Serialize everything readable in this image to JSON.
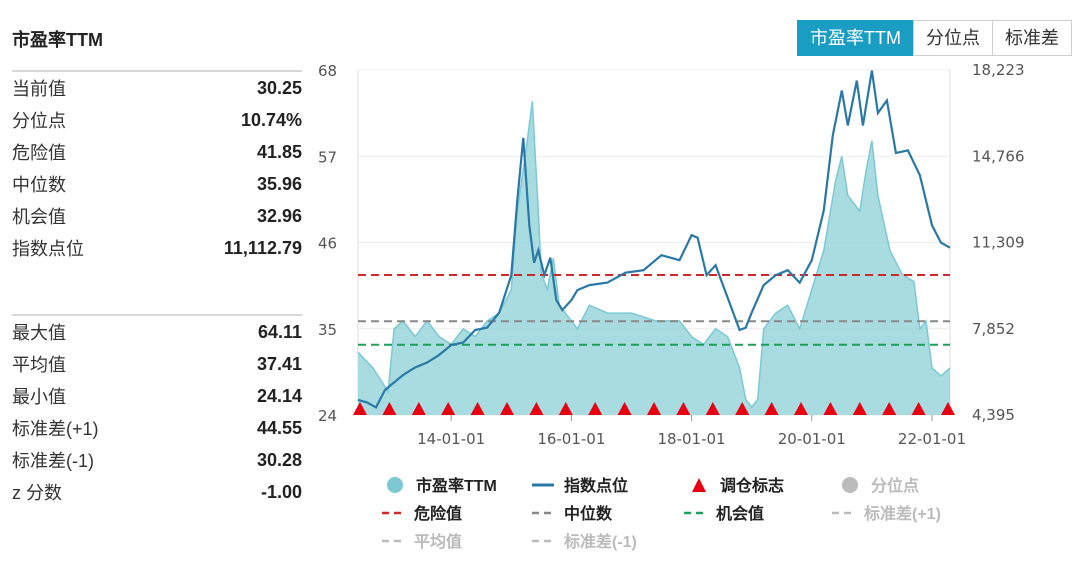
{
  "title": "市盈率TTM",
  "tabs": [
    {
      "label": "市盈率TTM",
      "active": true
    },
    {
      "label": "分位点",
      "active": false
    },
    {
      "label": "标准差",
      "active": false
    }
  ],
  "stats_group1": [
    {
      "label": "当前值",
      "value": "30.25"
    },
    {
      "label": "分位点",
      "value": "10.74%"
    },
    {
      "label": "危险值",
      "value": "41.85"
    },
    {
      "label": "中位数",
      "value": "35.96"
    },
    {
      "label": "机会值",
      "value": "32.96"
    },
    {
      "label": "指数点位",
      "value": "11,112.79"
    }
  ],
  "stats_group2": [
    {
      "label": "最大值",
      "value": "64.11"
    },
    {
      "label": "平均值",
      "value": "37.41"
    },
    {
      "label": "最小值",
      "value": "24.14"
    },
    {
      "label": "标准差(+1)",
      "value": "44.55"
    },
    {
      "label": "标准差(-1)",
      "value": "30.28"
    },
    {
      "label": "z 分数",
      "value": "-1.00"
    }
  ],
  "colors": {
    "pe_fill": "#9fd8de",
    "pe_line": "#7cc9d3",
    "index_line": "#2a78a6",
    "marker": "#e60012",
    "danger": "#cc2a2a",
    "median": "#888888",
    "opportunity": "#1e9e5a",
    "disabled": "#bbbbbb",
    "accent": "#1a9dc3"
  },
  "chart_data": {
    "type": "area",
    "y_left_ticks": [
      "68",
      "57",
      "46",
      "35",
      "24"
    ],
    "y_right_ticks": [
      "18,223",
      "14,766",
      "11,309",
      "7,852",
      "4,395"
    ],
    "x_ticks": [
      "14-01-01",
      "16-01-01",
      "18-01-01",
      "20-01-01",
      "22-01-01"
    ],
    "ylim_left": [
      24,
      68
    ],
    "ylim_right": [
      4395,
      18223
    ],
    "xlim": [
      2012.45,
      2022.3
    ],
    "ref_lines": {
      "danger": 41.85,
      "median": 35.96,
      "opportunity": 32.96
    },
    "series": [
      {
        "name": "市盈率TTM",
        "axis": "left",
        "x": [
          2012.45,
          2012.7,
          2012.95,
          2013.05,
          2013.2,
          2013.4,
          2013.6,
          2013.8,
          2014.0,
          2014.2,
          2014.4,
          2014.6,
          2014.8,
          2015.0,
          2015.1,
          2015.25,
          2015.35,
          2015.45,
          2015.5,
          2015.6,
          2015.7,
          2015.8,
          2015.9,
          2016.0,
          2016.1,
          2016.3,
          2016.6,
          2017.0,
          2017.4,
          2017.8,
          2018.0,
          2018.2,
          2018.4,
          2018.6,
          2018.8,
          2018.9,
          2019.0,
          2019.1,
          2019.2,
          2019.4,
          2019.6,
          2019.8,
          2020.0,
          2020.2,
          2020.4,
          2020.5,
          2020.6,
          2020.8,
          2020.9,
          2021.0,
          2021.1,
          2021.3,
          2021.5,
          2021.7,
          2021.8,
          2021.9,
          2022.0,
          2022.15,
          2022.3
        ],
        "values": [
          32,
          30,
          27,
          35,
          36,
          34,
          36,
          34,
          33,
          35,
          34,
          36,
          37,
          40,
          50,
          58,
          64,
          50,
          42,
          40,
          44,
          38,
          37,
          36,
          35,
          38,
          37,
          37,
          36,
          36,
          34,
          33,
          35,
          34,
          30,
          26,
          25,
          26,
          35,
          37,
          38,
          35,
          40,
          45,
          54,
          57,
          52,
          50,
          55,
          59,
          52,
          45,
          42,
          41,
          35,
          36,
          30,
          29,
          30
        ]
      },
      {
        "name": "指数点位",
        "axis": "right",
        "x": [
          2012.45,
          2012.6,
          2012.75,
          2012.9,
          2013.0,
          2013.2,
          2013.4,
          2013.6,
          2013.8,
          2014.0,
          2014.2,
          2014.4,
          2014.6,
          2014.8,
          2015.0,
          2015.1,
          2015.2,
          2015.3,
          2015.38,
          2015.45,
          2015.55,
          2015.65,
          2015.75,
          2015.85,
          2016.0,
          2016.1,
          2016.3,
          2016.6,
          2016.9,
          2017.2,
          2017.5,
          2017.8,
          2018.0,
          2018.1,
          2018.25,
          2018.4,
          2018.6,
          2018.8,
          2018.9,
          2019.0,
          2019.2,
          2019.4,
          2019.6,
          2019.8,
          2020.0,
          2020.2,
          2020.35,
          2020.5,
          2020.6,
          2020.75,
          2020.85,
          2021.0,
          2021.1,
          2021.25,
          2021.4,
          2021.6,
          2021.8,
          2022.0,
          2022.15,
          2022.3
        ],
        "values": [
          5000,
          4900,
          4700,
          5400,
          5600,
          6000,
          6300,
          6500,
          6800,
          7200,
          7300,
          7800,
          7900,
          8500,
          10000,
          13000,
          15500,
          12000,
          10500,
          11000,
          10000,
          10700,
          9000,
          8600,
          9000,
          9400,
          9600,
          9700,
          10100,
          10200,
          10800,
          10600,
          11600,
          11500,
          10000,
          10400,
          9100,
          7800,
          7900,
          8500,
          9600,
          10000,
          10200,
          9700,
          10600,
          12600,
          15600,
          17400,
          16000,
          17800,
          16000,
          18200,
          16500,
          17000,
          14900,
          15000,
          14000,
          12000,
          11300,
          11100
        ]
      }
    ],
    "rebalance_markers_count": 21,
    "legend": [
      {
        "label": "市盈率TTM",
        "kind": "dot",
        "color": "#7cc9d3"
      },
      {
        "label": "指数点位",
        "kind": "line",
        "color": "#2a78a6"
      },
      {
        "label": "调仓标志",
        "kind": "triangle",
        "color": "#e60012"
      },
      {
        "label": "分位点",
        "kind": "dot",
        "color": "#bbbbbb",
        "disabled": true
      },
      {
        "label": "危险值",
        "kind": "dash",
        "color": "#cc2a2a"
      },
      {
        "label": "中位数",
        "kind": "dash",
        "color": "#888888"
      },
      {
        "label": "机会值",
        "kind": "dash",
        "color": "#1e9e5a"
      },
      {
        "label": "标准差(+1)",
        "kind": "dash",
        "color": "#bbbbbb",
        "disabled": true
      },
      {
        "label": "平均值",
        "kind": "dash",
        "color": "#bbbbbb",
        "disabled": true
      },
      {
        "label": "标准差(-1)",
        "kind": "dash",
        "color": "#bbbbbb",
        "disabled": true
      }
    ]
  }
}
